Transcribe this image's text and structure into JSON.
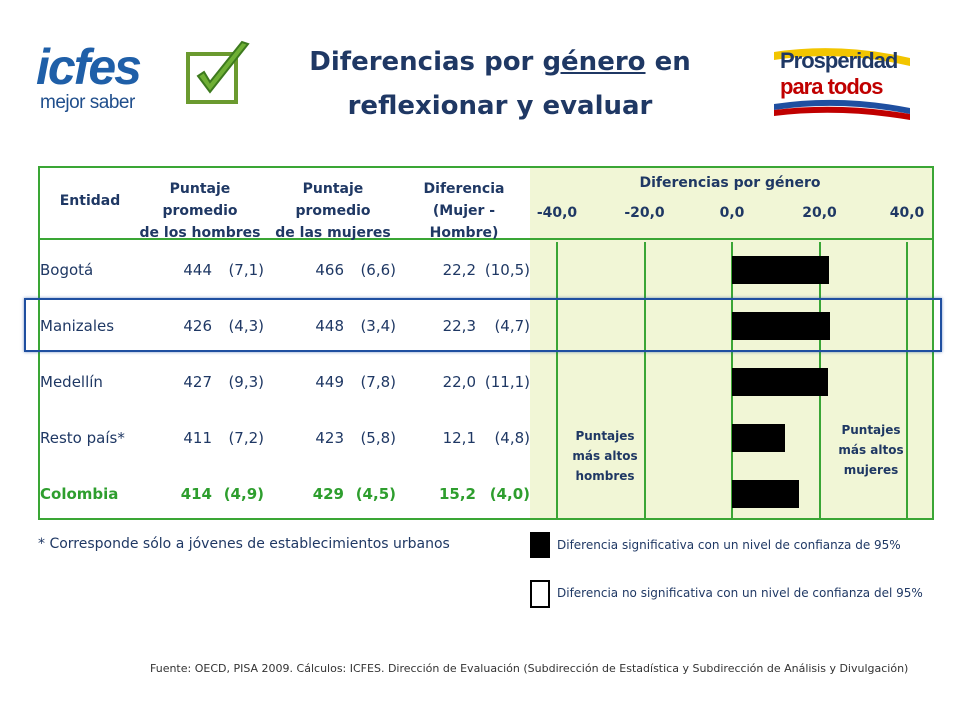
{
  "logos": {
    "icfes_word": "icfes",
    "icfes_sub": "mejor saber",
    "prosperidad_line1": "Prosperidad",
    "prosperidad_line2": "para todos"
  },
  "title": {
    "line1_pre": "Diferencias por ",
    "line1_underlined": "género",
    "line1_post": " en",
    "line2": "reflexionar y evaluar"
  },
  "headers": {
    "entidad": "Entidad",
    "hombres_1": "Puntaje promedio",
    "hombres_2": "de los hombres",
    "mujeres_1": "Puntaje promedio",
    "mujeres_2": "de las mujeres",
    "dif_1": "Diferencia",
    "dif_2": "(Mujer - Hombre)",
    "chart_title": "Diferencias por género"
  },
  "chart_data": {
    "type": "bar",
    "orientation": "horizontal",
    "title": "Diferencias por género",
    "categories": [
      "Bogotá",
      "Manizales",
      "Medellín",
      "Resto país*",
      "Colombia"
    ],
    "values": [
      22.2,
      22.3,
      22.0,
      12.1,
      15.2
    ],
    "xlim": [
      -40,
      40
    ],
    "tick_labels": [
      "-40,0",
      "-20,0",
      "0,0",
      "20,0",
      "40,0"
    ],
    "tick_values": [
      -40,
      -20,
      0,
      20,
      40
    ],
    "significant": [
      true,
      true,
      true,
      true,
      true
    ],
    "bar_color": "#000000",
    "grid": true
  },
  "rows": [
    {
      "entidad": "Bogotá",
      "h": "444",
      "h_se": "(7,1)",
      "m": "466",
      "m_se": "(6,6)",
      "d": "22,2",
      "d_se": "(10,5)",
      "bold": false
    },
    {
      "entidad": "Manizales",
      "h": "426",
      "h_se": "(4,3)",
      "m": "448",
      "m_se": "(3,4)",
      "d": "22,3",
      "d_se": "(4,7)",
      "bold": false
    },
    {
      "entidad": "Medellín",
      "h": "427",
      "h_se": "(9,3)",
      "m": "449",
      "m_se": "(7,8)",
      "d": "22,0",
      "d_se": "(11,1)",
      "bold": false
    },
    {
      "entidad": "Resto país*",
      "h": "411",
      "h_se": "(7,2)",
      "m": "423",
      "m_se": "(5,8)",
      "d": "12,1",
      "d_se": "(4,8)",
      "bold": false
    },
    {
      "entidad": "Colombia",
      "h": "414",
      "h_se": "(4,9)",
      "m": "429",
      "m_se": "(4,5)",
      "d": "15,2",
      "d_se": "(4,0)",
      "bold": true
    }
  ],
  "zones": {
    "hombres": [
      "Puntajes",
      "más altos",
      "hombres"
    ],
    "mujeres": [
      "Puntajes",
      "más altos",
      "mujeres"
    ]
  },
  "note": "* Corresponde sólo a jóvenes de establecimientos urbanos",
  "legend": {
    "significant": "Diferencia significativa  con un nivel de confianza de 95%",
    "not_significant": "Diferencia no significativa con un nivel de confianza del 95%"
  },
  "source": "Fuente: OECD, PISA 2009. Cálculos: ICFES. Dirección de Evaluación (Subdirección de Estadística y Subdirección de Análisis y Divulgación)",
  "colors": {
    "frame": "#3aa635",
    "shade": "#f1f6d6",
    "text": "#1f3864",
    "highlight": "#1f4fa0",
    "colombia": "#2e9e2e"
  }
}
